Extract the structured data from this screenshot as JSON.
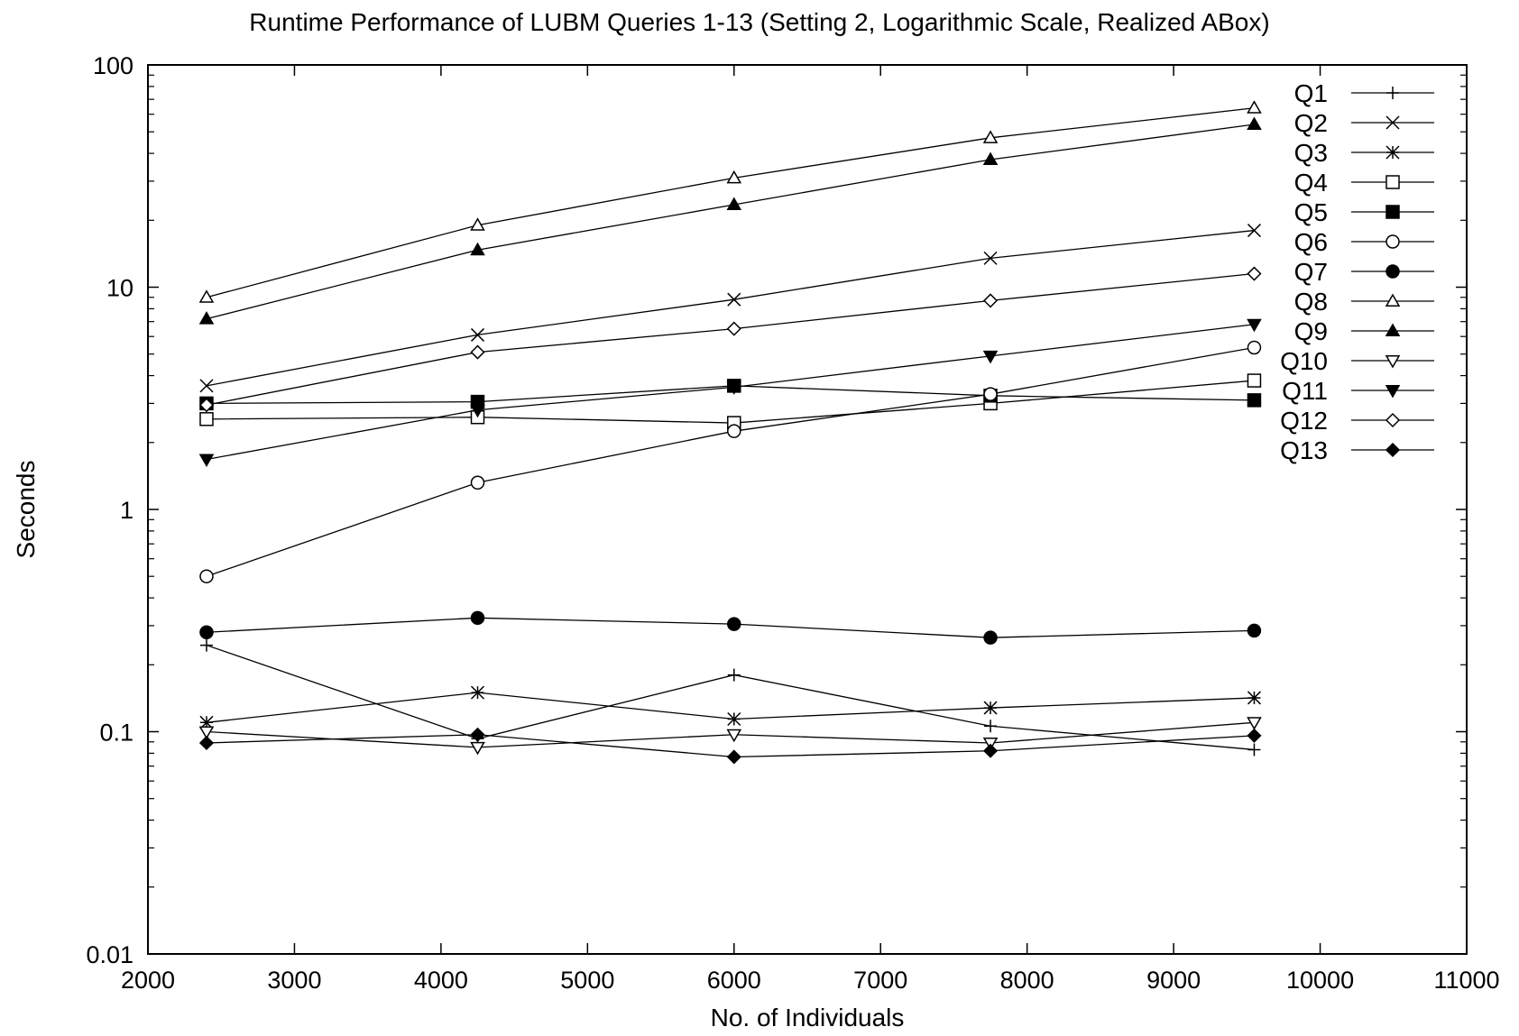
{
  "chart_data": {
    "type": "line",
    "title": "Runtime Performance of LUBM Queries 1-13 (Setting 2, Logarithmic Scale, Realized ABox)",
    "xlabel": "No. of Individuals",
    "ylabel": "Seconds",
    "xlim": [
      2000,
      11000
    ],
    "ylim": [
      0.01,
      100
    ],
    "yscale": "log",
    "xticks": [
      "2000",
      "3000",
      "4000",
      "5000",
      "6000",
      "7000",
      "8000",
      "9000",
      "10000",
      "11000"
    ],
    "yticks": [
      "0.01",
      "0.1",
      "1",
      "10",
      "100"
    ],
    "grid": false,
    "legend": "top-right",
    "x": [
      2400,
      4250,
      6000,
      7750,
      9550
    ],
    "series": [
      {
        "name": "Q1",
        "marker": "plus",
        "values": [
          0.245,
          0.093,
          0.18,
          0.106,
          0.083
        ]
      },
      {
        "name": "Q2",
        "marker": "cross",
        "values": [
          3.6,
          6.1,
          8.8,
          13.5,
          18.0
        ]
      },
      {
        "name": "Q3",
        "marker": "star",
        "values": [
          0.11,
          0.15,
          0.114,
          0.128,
          0.142
        ]
      },
      {
        "name": "Q4",
        "marker": "square-open",
        "values": [
          2.55,
          2.6,
          2.45,
          3.0,
          3.8
        ]
      },
      {
        "name": "Q5",
        "marker": "square-filled",
        "values": [
          3.0,
          3.05,
          3.6,
          3.25,
          3.1
        ]
      },
      {
        "name": "Q6",
        "marker": "circle-open",
        "values": [
          0.5,
          1.32,
          2.25,
          3.3,
          5.35
        ]
      },
      {
        "name": "Q7",
        "marker": "circle-filled",
        "values": [
          0.28,
          0.325,
          0.305,
          0.265,
          0.285
        ]
      },
      {
        "name": "Q8",
        "marker": "triangle-up-open",
        "values": [
          9.0,
          19.0,
          31.0,
          47.0,
          64.0
        ]
      },
      {
        "name": "Q9",
        "marker": "triangle-up-filled",
        "values": [
          7.2,
          14.7,
          23.5,
          37.5,
          54.0
        ]
      },
      {
        "name": "Q10",
        "marker": "triangle-down-open",
        "values": [
          0.1,
          0.085,
          0.097,
          0.089,
          0.11
        ]
      },
      {
        "name": "Q11",
        "marker": "triangle-down-filled",
        "values": [
          1.68,
          2.8,
          3.55,
          4.9,
          6.8
        ]
      },
      {
        "name": "Q12",
        "marker": "diamond-open",
        "values": [
          2.95,
          5.1,
          6.5,
          8.7,
          11.5
        ]
      },
      {
        "name": "Q13",
        "marker": "diamond-filled",
        "values": [
          0.089,
          0.097,
          0.077,
          0.082,
          0.096
        ]
      }
    ]
  }
}
